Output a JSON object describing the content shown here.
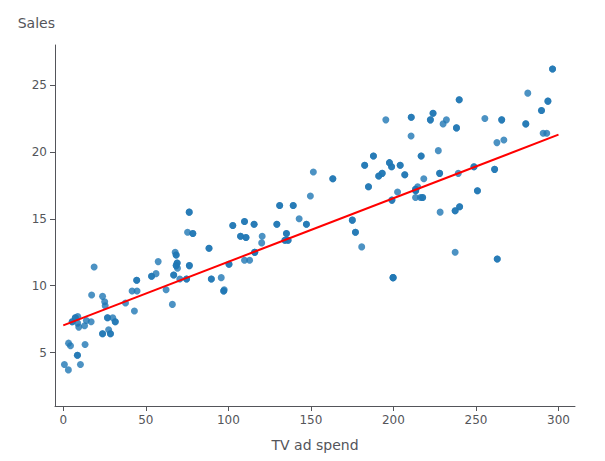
{
  "chart_data": {
    "type": "scatter",
    "xlabel": "TV ad spend",
    "ylabel": "Sales",
    "xlim": [
      -5,
      310
    ],
    "ylim": [
      1,
      28
    ],
    "xticks": [
      0,
      50,
      100,
      150,
      200,
      250,
      300
    ],
    "yticks": [
      5,
      10,
      15,
      20,
      25
    ],
    "grid": false,
    "series": [
      {
        "type": "scatter",
        "color": "#1f77b4",
        "x": [
          230.1,
          44.5,
          17.2,
          151.5,
          180.8,
          8.7,
          57.5,
          120.2,
          8.6,
          199.8,
          66.1,
          214.7,
          23.8,
          97.5,
          204.1,
          195.4,
          67.8,
          281.4,
          69.2,
          147.3,
          218.4,
          237.4,
          13.2,
          228.3,
          62.3,
          262.9,
          142.9,
          240.1,
          248.8,
          70.6,
          292.9,
          112.9,
          97.2,
          265.6,
          95.7,
          290.7,
          266.9,
          74.7,
          43.1,
          228.0,
          202.5,
          177.0,
          293.6,
          206.9,
          25.1,
          175.1,
          89.7,
          239.9,
          227.2,
          66.9,
          199.8,
          100.4,
          216.4,
          182.6,
          262.7,
          198.9,
          7.3,
          136.2,
          210.8,
          210.7,
          53.5,
          261.3,
          239.3,
          102.7,
          131.1,
          69.0,
          31.5,
          139.3,
          237.4,
          216.8,
          199.1,
          109.8,
          26.8,
          129.4,
          213.4,
          16.9,
          27.5,
          120.5,
          5.4,
          116.0,
          76.4,
          239.8,
          75.3,
          68.4,
          213.5,
          193.2,
          76.3,
          110.7,
          88.3,
          109.8,
          134.3,
          28.6,
          217.7,
          250.9,
          107.4,
          163.3,
          197.6,
          184.9,
          289.7,
          135.2,
          222.4,
          296.4,
          280.2,
          187.9,
          238.2,
          68.4,
          224.0,
          115.6,
          78.5,
          213.4,
          191.1,
          23.8,
          25.4,
          97.2,
          204.1,
          44.5,
          147.3,
          248.8,
          265.6,
          228.0,
          177.0,
          262.9,
          240.1,
          74.7,
          89.7,
          293.6,
          175.1,
          206.9,
          199.8,
          66.9,
          100.4,
          136.2,
          182.6,
          210.8,
          7.3,
          198.9,
          131.1,
          102.7,
          261.3,
          53.5,
          69.0,
          237.4,
          31.5,
          216.8,
          139.3,
          26.8,
          129.4,
          109.8,
          5.4,
          116.0,
          199.1,
          76.4,
          213.5,
          68.4,
          193.2,
          76.3,
          88.3,
          110.7,
          28.6,
          134.3,
          217.7,
          107.4,
          250.9,
          163.3,
          184.9,
          289.7,
          197.6,
          135.2,
          222.4,
          296.4,
          280.2,
          187.9,
          68.4,
          238.2,
          224.0,
          115.6,
          78.5,
          213.4,
          23.8,
          191.1,
          56.2,
          3.1,
          44.7,
          30.0,
          10.4,
          14.0,
          255.4,
          18.7,
          149.7,
          41.7,
          12.9,
          4.4,
          3.2,
          116.0,
          37.7,
          9.4,
          0.7,
          232.1,
          8.6,
          8.8
        ],
        "values": [
          22.1,
          10.4,
          9.3,
          18.5,
          12.9,
          7.2,
          11.8,
          13.2,
          4.8,
          10.6,
          8.6,
          17.4,
          9.2,
          9.7,
          19.0,
          22.4,
          12.5,
          24.4,
          11.3,
          14.6,
          18.0,
          12.5,
          5.6,
          15.5,
          9.7,
          12.0,
          15.0,
          15.9,
          18.9,
          10.5,
          21.4,
          11.9,
          9.6,
          22.4,
          10.6,
          21.4,
          20.9,
          10.5,
          8.1,
          18.4,
          17.0,
          14.0,
          23.8,
          18.3,
          8.8,
          14.9,
          10.5,
          23.9,
          20.1,
          10.8,
          10.6,
          11.6,
          16.6,
          19.0,
          20.7,
          18.9,
          7.6,
          13.4,
          22.6,
          21.2,
          10.7,
          18.7,
          18.4,
          14.5,
          16.0,
          11.7,
          7.3,
          16.0,
          15.6,
          19.7,
          16.4,
          14.8,
          7.6,
          14.6,
          16.6,
          7.3,
          6.7,
          13.7,
          7.3,
          12.5,
          11.5,
          23.9,
          14.0,
          12.3,
          17.1,
          18.4,
          15.5,
          13.6,
          12.8,
          11.9,
          13.4,
          6.4,
          16.6,
          17.1,
          13.7,
          18.0,
          19.2,
          17.4,
          23.1,
          13.9,
          22.4,
          26.2,
          22.1,
          19.7,
          21.8,
          11.5,
          22.9,
          14.6,
          13.9,
          17.2,
          18.2,
          6.4,
          8.5,
          9.6,
          19.0,
          10.4,
          14.6,
          18.9,
          22.4,
          18.4,
          14.0,
          12.0,
          15.9,
          10.5,
          10.5,
          23.8,
          14.9,
          18.3,
          10.6,
          10.8,
          11.6,
          13.4,
          19.0,
          22.6,
          7.6,
          18.9,
          16.0,
          14.5,
          18.7,
          10.7,
          11.7,
          15.6,
          7.3,
          19.7,
          16.0,
          7.6,
          14.6,
          14.8,
          7.3,
          12.5,
          16.4,
          11.5,
          17.1,
          12.3,
          18.4,
          15.5,
          12.8,
          13.6,
          6.4,
          13.4,
          16.6,
          13.7,
          17.1,
          18.0,
          17.4,
          23.1,
          19.2,
          13.9,
          22.4,
          26.2,
          22.1,
          19.7,
          11.5,
          21.8,
          22.9,
          14.6,
          13.9,
          17.2,
          6.4,
          18.2,
          10.9,
          3.7,
          9.6,
          7.6,
          4.1,
          7.4,
          22.5,
          11.4,
          16.7,
          9.6,
          7.0,
          5.5,
          5.7,
          12.5,
          8.7,
          6.9,
          4.1,
          22.4,
          4.8,
          7.7
        ]
      },
      {
        "type": "line",
        "color": "red",
        "x": [
          0,
          300
        ],
        "values": [
          7.032594,
          21.293694
        ]
      }
    ]
  }
}
